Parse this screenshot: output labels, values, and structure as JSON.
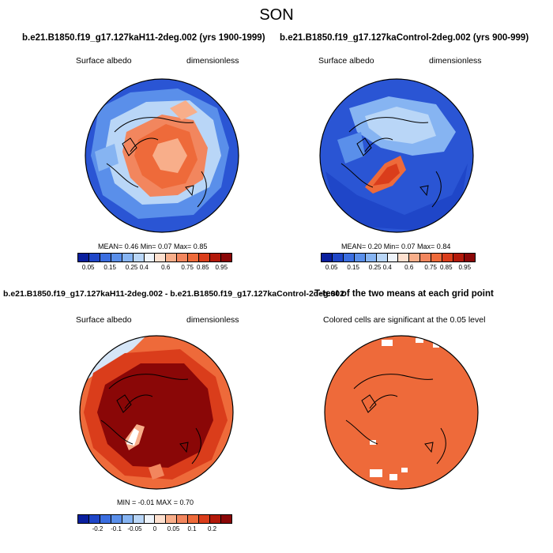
{
  "title": "SON",
  "panels": [
    {
      "name": "panel-case",
      "title": "b.e21.B1850.f19_g17.127kaH11-2deg.002 (yrs 1900-1999)",
      "left_label": "Surface albedo",
      "right_label": "dimensionless",
      "stats": "MEAN=  0.46  Min=  0.07  Max=  0.85",
      "colorbar": {
        "colors": [
          "#0a1f9e",
          "#1f46c8",
          "#3b6ee0",
          "#5a8fea",
          "#86b4f2",
          "#b9d6f7",
          "#eef4fb",
          "#fde0cf",
          "#f8ae8a",
          "#f2865e",
          "#ee6a3a",
          "#da3d1b",
          "#b3190a",
          "#8a0707"
        ],
        "tick_labels": [
          "0.05",
          "0.15",
          "0.25",
          "0.4",
          "0.6",
          "0.75",
          "0.85",
          "0.95"
        ]
      }
    },
    {
      "name": "panel-control",
      "title": "b.e21.B1850.f19_g17.127kaControl-2deg.002 (yrs 900-999)",
      "left_label": "Surface albedo",
      "right_label": "dimensionless",
      "stats": "MEAN=  0.20  Min=  0.07  Max=  0.84",
      "colorbar": {
        "colors": [
          "#0a1f9e",
          "#1f46c8",
          "#3b6ee0",
          "#5a8fea",
          "#86b4f2",
          "#b9d6f7",
          "#eef4fb",
          "#fde0cf",
          "#f8ae8a",
          "#f2865e",
          "#ee6a3a",
          "#da3d1b",
          "#b3190a",
          "#8a0707"
        ],
        "tick_labels": [
          "0.05",
          "0.15",
          "0.25",
          "0.4",
          "0.6",
          "0.75",
          "0.85",
          "0.95"
        ]
      }
    },
    {
      "name": "panel-difference",
      "title": "b.e21.B1850.f19_g17.127kaH11-2deg.002 - b.e21.B1850.f19_g17.127kaControl-2deg.002",
      "left_label": "Surface albedo",
      "right_label": "dimensionless",
      "stats": "MIN = -0.01  MAX =  0.70",
      "colorbar": {
        "colors": [
          "#0a1f9e",
          "#1f46c8",
          "#3b6ee0",
          "#5a8fea",
          "#86b4f2",
          "#b9d6f7",
          "#eef4fb",
          "#fde0cf",
          "#f8ae8a",
          "#f2865e",
          "#ee6a3a",
          "#da3d1b",
          "#b3190a",
          "#8a0707"
        ],
        "tick_labels": [
          "-0.2",
          "-0.1",
          "-0.05",
          "0",
          "0.05",
          "0.1",
          "0.2"
        ]
      }
    },
    {
      "name": "panel-ttest",
      "title": "T-test of the two means at each grid point",
      "subtitle": "Colored cells are significant at the 0.05 level"
    }
  ]
}
